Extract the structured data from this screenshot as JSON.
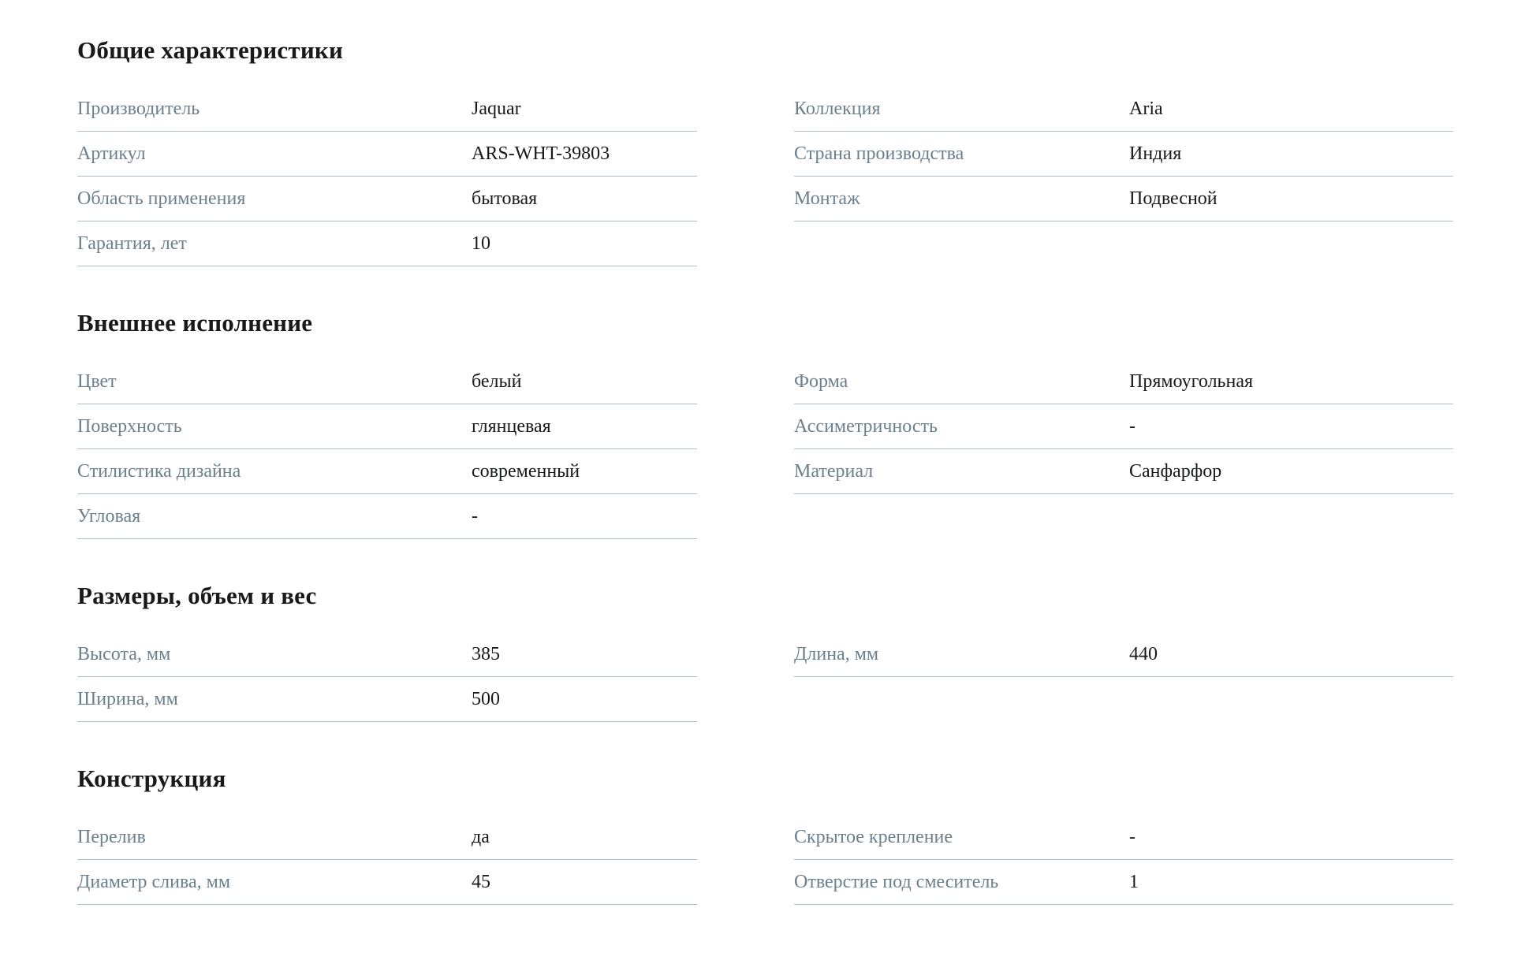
{
  "colors": {
    "background": "#ffffff",
    "heading": "#19191b",
    "label": "#6b7f8d",
    "value": "#17191c",
    "divider": "#aebcc6"
  },
  "sections": [
    {
      "title": "Общие характеристики",
      "left": [
        {
          "label": "Производитель",
          "value": "Jaquar"
        },
        {
          "label": "Артикул",
          "value": "ARS-WHT-39803"
        },
        {
          "label": "Область применения",
          "value": "бытовая"
        },
        {
          "label": "Гарантия, лет",
          "value": "10"
        }
      ],
      "right": [
        {
          "label": "Коллекция",
          "value": "Aria"
        },
        {
          "label": "Страна производства",
          "value": "Индия"
        },
        {
          "label": "Монтаж",
          "value": "Подвесной"
        }
      ]
    },
    {
      "title": "Внешнее исполнение",
      "left": [
        {
          "label": "Цвет",
          "value": "белый"
        },
        {
          "label": "Поверхность",
          "value": "глянцевая"
        },
        {
          "label": "Стилистика дизайна",
          "value": "современный"
        },
        {
          "label": "Угловая",
          "value": "-"
        }
      ],
      "right": [
        {
          "label": "Форма",
          "value": "Прямоугольная"
        },
        {
          "label": "Ассиметричность",
          "value": "-"
        },
        {
          "label": "Материал",
          "value": "Санфарфор"
        }
      ]
    },
    {
      "title": "Размеры, объем и вес",
      "left": [
        {
          "label": "Высота, мм",
          "value": "385"
        },
        {
          "label": "Ширина, мм",
          "value": "500"
        }
      ],
      "right": [
        {
          "label": "Длина, мм",
          "value": "440"
        }
      ]
    },
    {
      "title": "Конструкция",
      "left": [
        {
          "label": "Перелив",
          "value": "да"
        },
        {
          "label": "Диаметр слива, мм",
          "value": "45"
        }
      ],
      "right": [
        {
          "label": "Скрытое крепление",
          "value": "-"
        },
        {
          "label": "Отверстие под смеситель",
          "value": "1"
        }
      ]
    }
  ]
}
